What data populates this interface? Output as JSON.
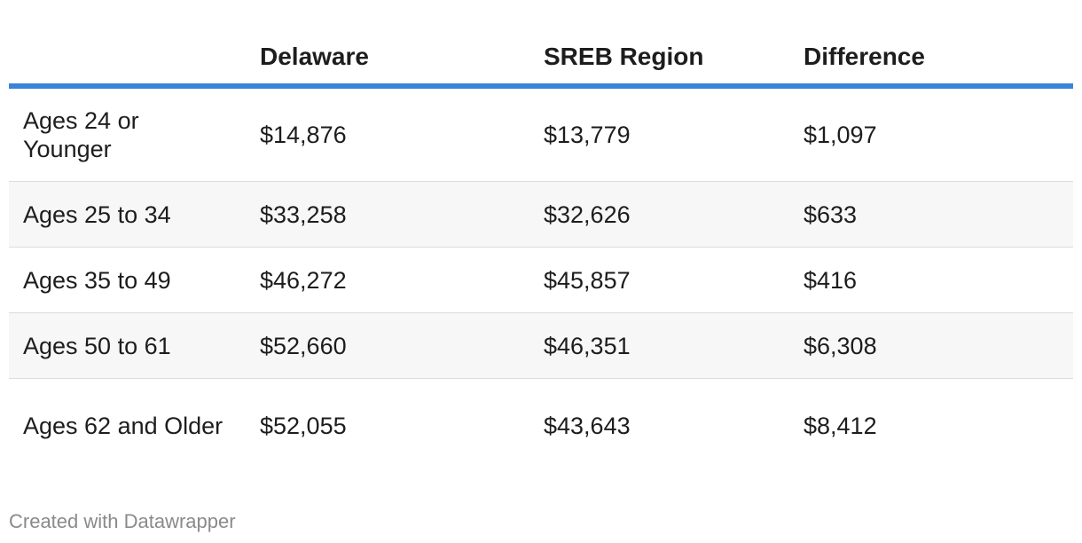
{
  "chart_data": {
    "type": "table",
    "columns": [
      "",
      "Delaware",
      "SREB Region",
      "Difference"
    ],
    "rows": [
      {
        "label": "Ages 24 or Younger",
        "values": [
          "$14,876",
          "$13,779",
          "$1,097"
        ]
      },
      {
        "label": "Ages 25 to 34",
        "values": [
          "$33,258",
          "$32,626",
          "$633"
        ]
      },
      {
        "label": "Ages 35 to 49",
        "values": [
          "$46,272",
          "$45,857",
          "$416"
        ]
      },
      {
        "label": "Ages 50 to 61",
        "values": [
          "$52,660",
          "$46,351",
          "$6,308"
        ]
      },
      {
        "label": "Ages 62 and Older",
        "values": [
          "$52,055",
          "$43,643",
          "$8,412"
        ]
      }
    ],
    "accent_color": "#3b82d9"
  },
  "footer": {
    "credit": "Created with Datawrapper"
  }
}
